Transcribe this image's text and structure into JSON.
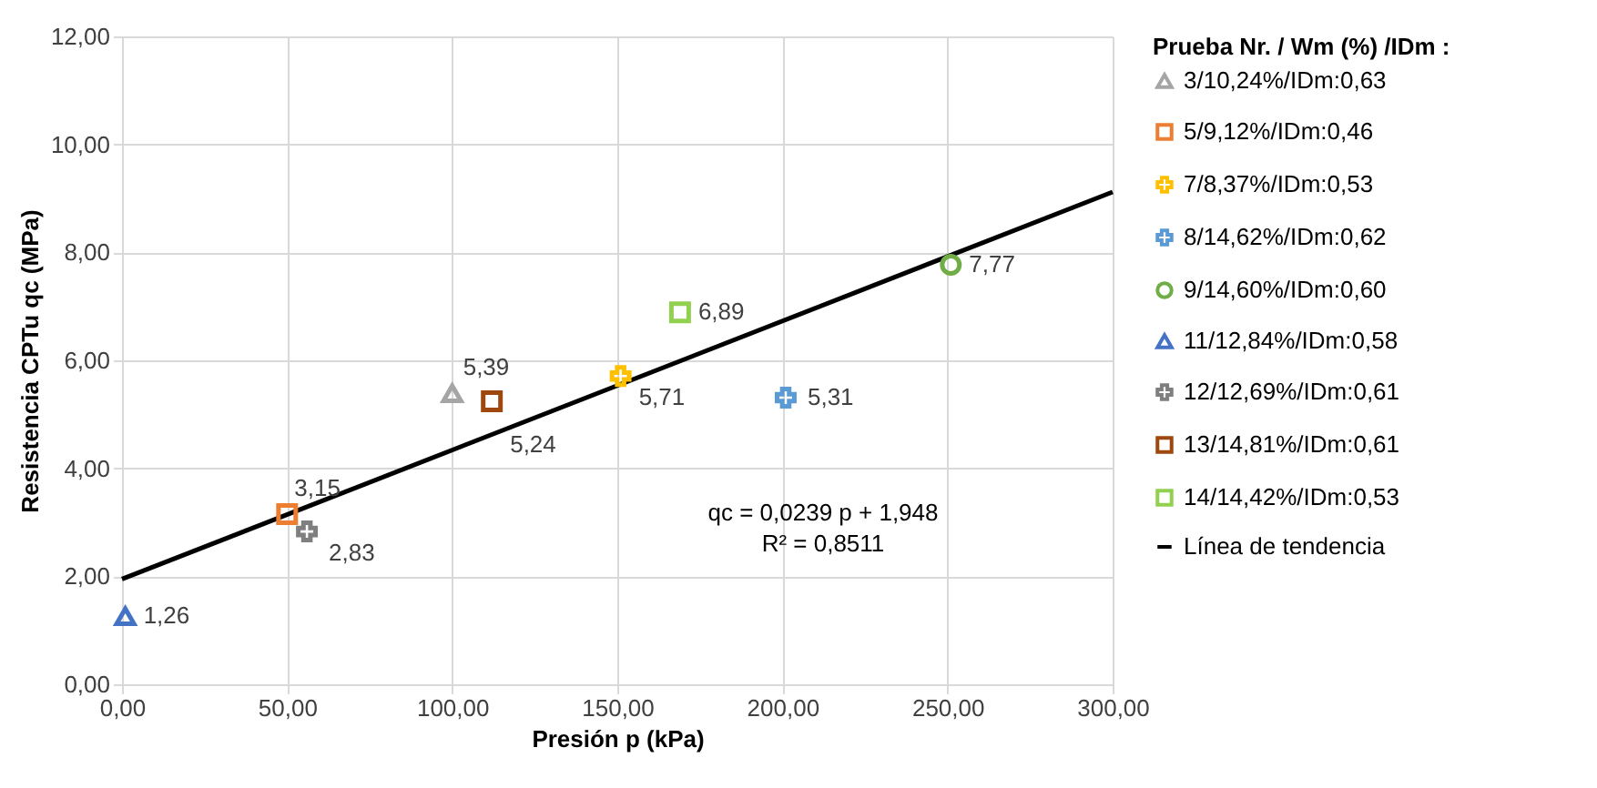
{
  "chart_data": {
    "type": "scatter",
    "xlabel": "Presión p (kPa)",
    "ylabel": "Resistencia CPTu qc (MPa)",
    "legend_title": "Prueba Nr. / Wm (%) /IDm :",
    "legend": "right",
    "grid": true,
    "xlim": [
      0,
      300
    ],
    "ylim": [
      0,
      12
    ],
    "xticks": [
      {
        "value": 0,
        "label": "0,00"
      },
      {
        "value": 50,
        "label": "50,00"
      },
      {
        "value": 100,
        "label": "100,00"
      },
      {
        "value": 150,
        "label": "150,00"
      },
      {
        "value": 200,
        "label": "200,00"
      },
      {
        "value": 250,
        "label": "250,00"
      },
      {
        "value": 300,
        "label": "300,00"
      }
    ],
    "yticks": [
      {
        "value": 0,
        "label": "0,00"
      },
      {
        "value": 2,
        "label": "2,00"
      },
      {
        "value": 4,
        "label": "4,00"
      },
      {
        "value": 6,
        "label": "6,00"
      },
      {
        "value": 8,
        "label": "8,00"
      },
      {
        "value": 10,
        "label": "10,00"
      },
      {
        "value": 12,
        "label": "12,00"
      }
    ],
    "annotations": [
      "qc = 0,0239 p + 1,948",
      "R² = 0,8511"
    ],
    "series": [
      {
        "name": "3/10,24%/IDm:0,63",
        "color": "#a5a5a5",
        "marker": "triangle",
        "x": [
          100
        ],
        "values": [
          5.39
        ],
        "value_labels": [
          "5,39"
        ]
      },
      {
        "name": "5/9,12%/IDm:0,46",
        "color": "#ed7d31",
        "marker": "square",
        "x": [
          50
        ],
        "values": [
          3.15
        ],
        "value_labels": [
          "3,15"
        ]
      },
      {
        "name": "7/8,37%/IDm:0,53",
        "color": "#ffc000",
        "marker": "cross",
        "x": [
          151
        ],
        "values": [
          5.71
        ],
        "value_labels": [
          "5,71"
        ]
      },
      {
        "name": "8/14,62%/IDm:0,62",
        "color": "#5b9bd5",
        "marker": "cross",
        "x": [
          201
        ],
        "values": [
          5.31
        ],
        "value_labels": [
          "5,31"
        ]
      },
      {
        "name": "9/14,60%/IDm:0,60",
        "color": "#70ad47",
        "marker": "circle",
        "x": [
          251
        ],
        "values": [
          7.77
        ],
        "value_labels": [
          "7,77"
        ]
      },
      {
        "name": "11/12,84%/IDm:0,58",
        "color": "#4472c4",
        "marker": "triangle",
        "x": [
          1
        ],
        "values": [
          1.26
        ],
        "value_labels": [
          "1,26"
        ]
      },
      {
        "name": "12/12,69%/IDm:0,61",
        "color": "#7f7f7f",
        "marker": "cross",
        "x": [
          56
        ],
        "values": [
          2.83
        ],
        "value_labels": [
          "2,83"
        ]
      },
      {
        "name": "13/14,81%/IDm:0,61",
        "color": "#9e480e",
        "marker": "square",
        "x": [
          112
        ],
        "values": [
          5.24
        ],
        "value_labels": [
          "5,24"
        ]
      },
      {
        "name": "14/14,42%/IDm:0,53",
        "color": "#92d050",
        "marker": "square",
        "x": [
          169
        ],
        "values": [
          6.89
        ],
        "value_labels": [
          "6,89"
        ]
      },
      {
        "name": "Línea de tendencia",
        "type": "line",
        "color": "#000000",
        "x": [
          0,
          300
        ],
        "values": [
          1.948,
          9.118
        ]
      }
    ]
  }
}
